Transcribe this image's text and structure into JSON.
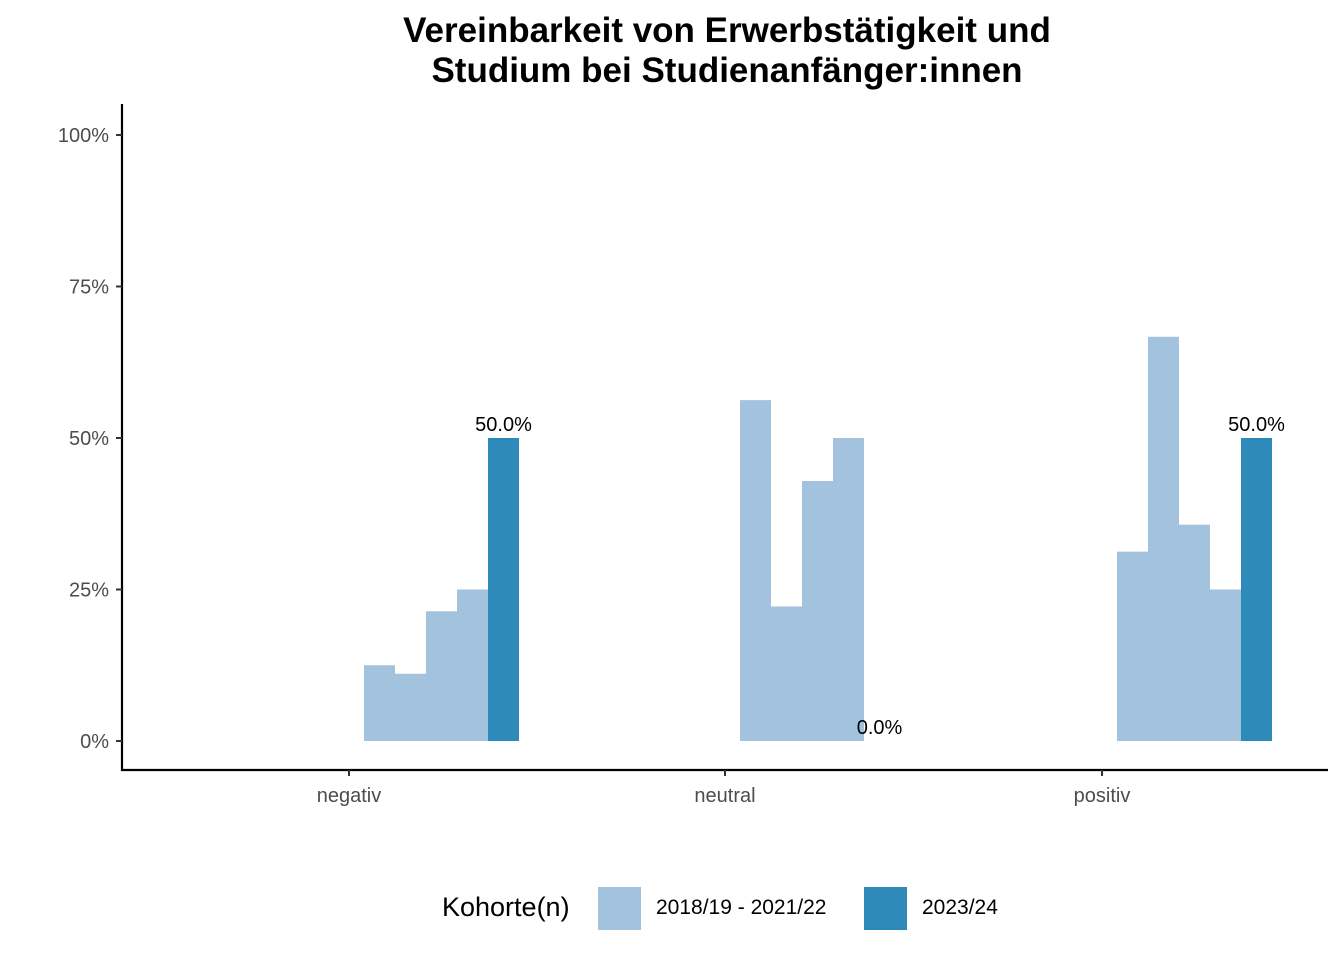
{
  "chart_data": {
    "type": "bar",
    "title_lines": [
      "Vereinbarkeit von Erwerbstätigkeit und",
      "Studium bei Studienanfänger:innen"
    ],
    "xlabel": "",
    "ylabel": "",
    "categories": [
      "negativ",
      "neutral",
      "positiv"
    ],
    "ylim": [
      0,
      1
    ],
    "yticks": [
      0,
      0.25,
      0.5,
      0.75,
      1
    ],
    "ytick_labels": [
      "0%",
      "25%",
      "50%",
      "75%",
      "100%"
    ],
    "legend_title": "Kohorte(n)",
    "legend_position": "bottom",
    "grid": false,
    "series": [
      {
        "name": "2018/19 - 2021/22",
        "color": "#a2c2de",
        "values": [
          [
            0.125,
            0.111,
            0.214,
            0.25
          ],
          [
            0.5625,
            0.222,
            0.429,
            0.5
          ],
          [
            0.3125,
            0.667,
            0.357,
            0.25
          ]
        ]
      },
      {
        "name": "2023/24",
        "color": "#2e8ab8",
        "values": [
          0.5,
          0.0,
          0.5
        ]
      }
    ],
    "data_labels": [
      "50.0%",
      "0.0%",
      "50.0%"
    ]
  }
}
